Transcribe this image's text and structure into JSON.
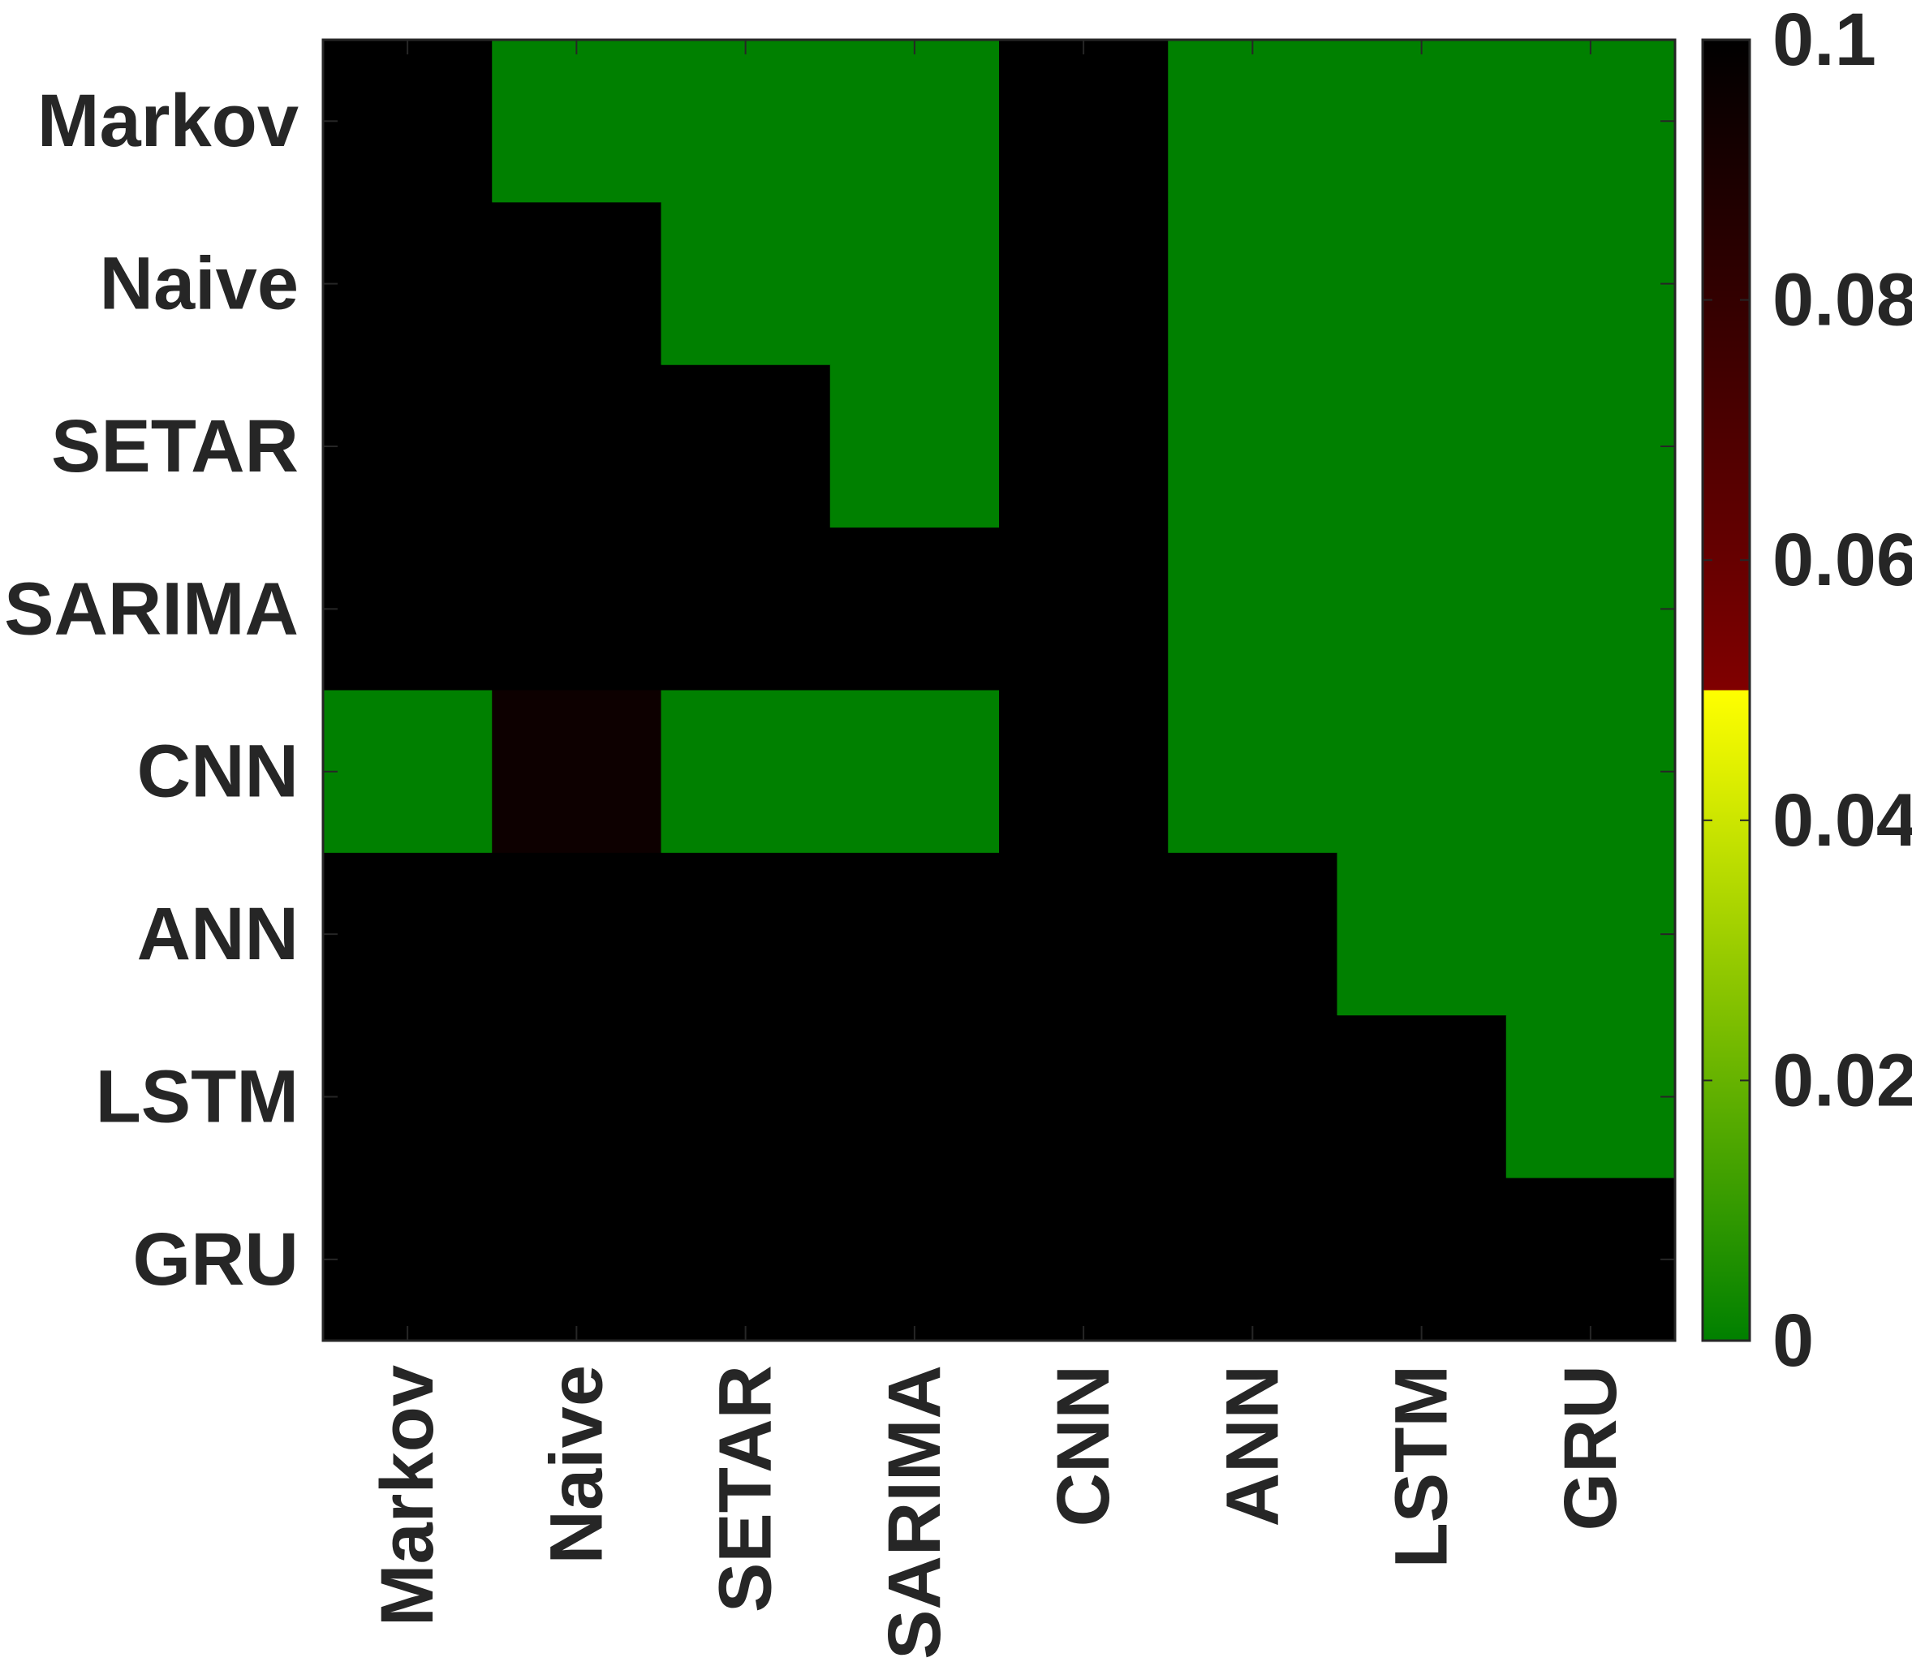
{
  "chart_data": {
    "type": "heatmap",
    "rows": [
      "Markov",
      "Naive",
      "SETAR",
      "SARIMA",
      "CNN",
      "ANN",
      "LSTM",
      "GRU"
    ],
    "columns": [
      "Markov",
      "Naive",
      "SETAR",
      "SARIMA",
      "CNN",
      "ANN",
      "LSTM",
      "GRU"
    ],
    "values": [
      [
        0.1,
        0.0,
        0.0,
        0.0,
        0.1,
        0.0,
        0.0,
        0.0
      ],
      [
        0.1,
        0.1,
        0.0,
        0.0,
        0.1,
        0.0,
        0.0,
        0.0
      ],
      [
        0.1,
        0.1,
        0.1,
        0.0,
        0.1,
        0.0,
        0.0,
        0.0
      ],
      [
        0.1,
        0.1,
        0.1,
        0.1,
        0.1,
        0.0,
        0.0,
        0.0
      ],
      [
        0.0,
        0.095,
        0.0,
        0.0,
        0.1,
        0.0,
        0.0,
        0.0
      ],
      [
        0.1,
        0.1,
        0.1,
        0.1,
        0.1,
        0.1,
        0.0,
        0.0
      ],
      [
        0.1,
        0.1,
        0.1,
        0.1,
        0.1,
        0.1,
        0.1,
        0.0
      ],
      [
        0.1,
        0.1,
        0.1,
        0.1,
        0.1,
        0.1,
        0.1,
        0.1
      ]
    ],
    "colorbar": {
      "range": [
        0,
        0.1
      ],
      "ticks": [
        0,
        0.02,
        0.04,
        0.06,
        0.08,
        0.1
      ],
      "tick_labels": [
        "0",
        "0.02",
        "0.04",
        "0.06",
        "0.08",
        "0.1"
      ],
      "stops": [
        {
          "value": 0.0,
          "color": "#008000"
        },
        {
          "value": 0.05,
          "color": "#ffff00"
        },
        {
          "value": 0.05,
          "color": "#800000"
        },
        {
          "value": 0.1,
          "color": "#000000"
        }
      ]
    },
    "title": "",
    "xlabel": "",
    "ylabel": "",
    "x_tick_rotation": "vertical"
  }
}
